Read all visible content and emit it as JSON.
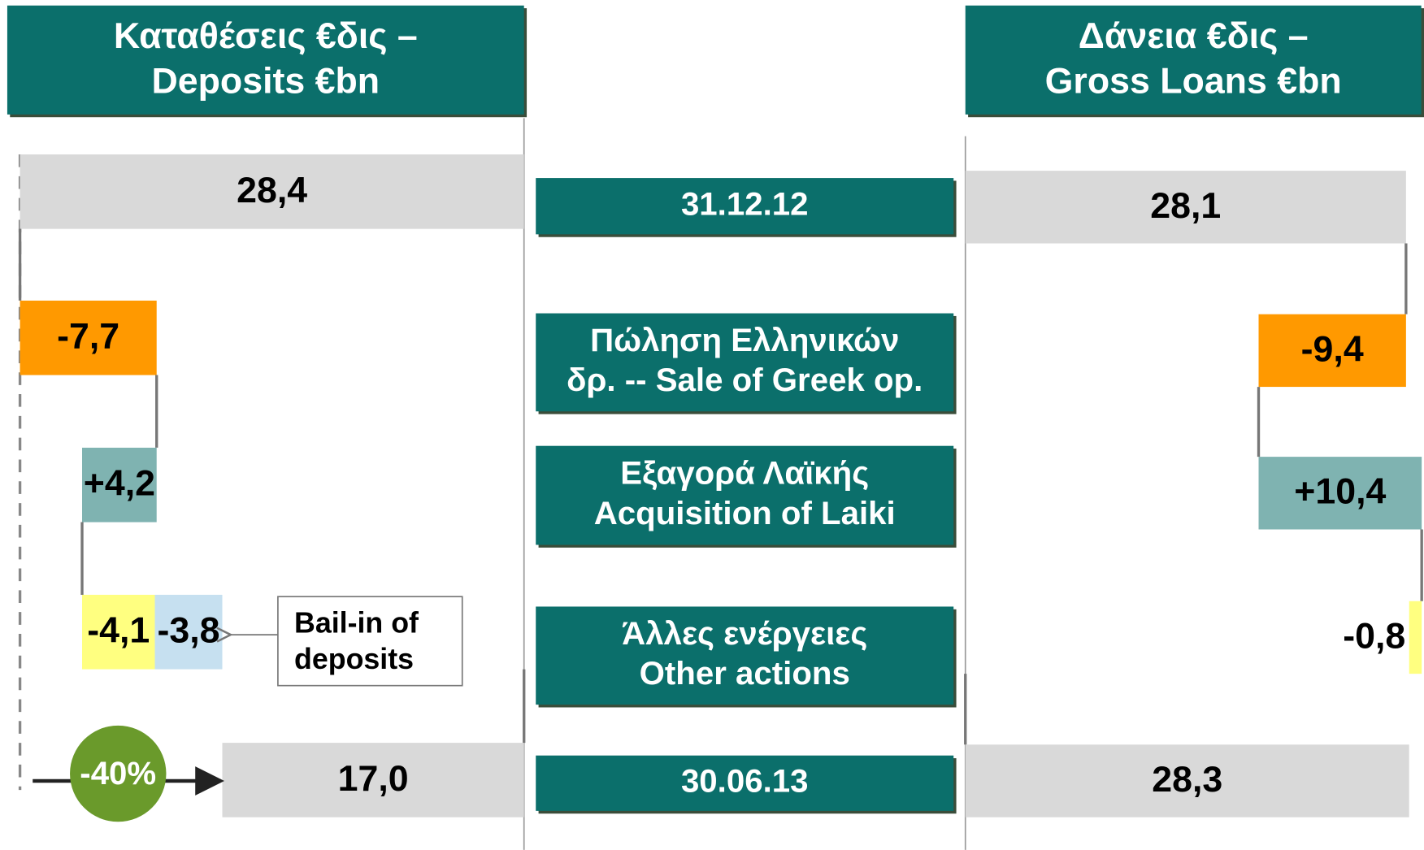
{
  "row_labels": [
    [
      "31.12.12"
    ],
    [
      "Πώληση Ελληνικών",
      "δρ. -- Sale of Greek op."
    ],
    [
      "Εξαγορά Λαϊκής",
      "Acquisition of Laiki"
    ],
    [
      "Άλλες ενέργειες",
      "Other actions"
    ],
    [
      "30.06.13"
    ]
  ],
  "chart_data": [
    {
      "type": "waterfall",
      "title": [
        "Καταθέσεις  €δις –",
        "Deposits €bn"
      ],
      "values": [
        28.4,
        -7.7,
        4.2,
        -4.1,
        -3.8,
        17.0
      ],
      "value_labels": [
        "28,4",
        "-7,7",
        "+4,2",
        "-4,1",
        "-3,8",
        "17,0"
      ],
      "totals": [
        true,
        false,
        false,
        false,
        false,
        true
      ],
      "colors": [
        "#d9d9d9",
        "#ff9900",
        "#7fb3b1",
        "#ffff80",
        "#c6e0f0",
        "#d9d9d9"
      ],
      "xlim": [
        0,
        28.4
      ],
      "reversed": true,
      "annotations": {
        "note": [
          "Bail-in of",
          "deposits"
        ],
        "change": "-40%"
      }
    },
    {
      "type": "waterfall",
      "title": [
        "Δάνεια €δις –",
        "Gross Loans €bn"
      ],
      "values": [
        28.1,
        -9.4,
        10.4,
        -0.8,
        28.3
      ],
      "value_labels": [
        "28,1",
        "-9,4",
        "+10,4",
        "-0,8",
        "28,3"
      ],
      "totals": [
        true,
        false,
        false,
        false,
        true
      ],
      "colors": [
        "#d9d9d9",
        "#ff9900",
        "#7fb3b1",
        "#ffff80",
        "#d9d9d9"
      ],
      "xlim": [
        0,
        30
      ],
      "reversed": false
    }
  ]
}
